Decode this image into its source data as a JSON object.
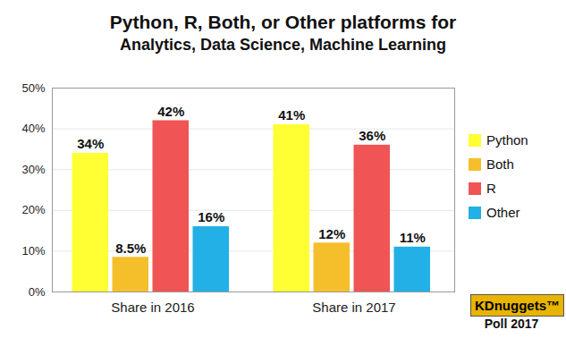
{
  "chart_data": {
    "type": "bar",
    "title": "Python, R, Both, or Other platforms for",
    "subtitle": "Analytics, Data Science, Machine Learning",
    "categories": [
      "Share in 2016",
      "Share in 2017"
    ],
    "series": [
      {
        "name": "Python",
        "color": "#ffff33",
        "values": [
          34,
          41
        ],
        "value_labels": [
          "34%",
          "41%"
        ]
      },
      {
        "name": "Both",
        "color": "#f5bf2c",
        "values": [
          8.5,
          12
        ],
        "value_labels": [
          "8.5%",
          "12%"
        ]
      },
      {
        "name": "R",
        "color": "#f05454",
        "values": [
          42,
          36
        ],
        "value_labels": [
          "42%",
          "36%"
        ]
      },
      {
        "name": "Other",
        "color": "#22b0e6",
        "values": [
          16,
          11
        ],
        "value_labels": [
          "16%",
          "11%"
        ]
      }
    ],
    "ylim": [
      0,
      50
    ],
    "yticks": [
      {
        "value": 0,
        "label": "0%"
      },
      {
        "value": 10,
        "label": "10%"
      },
      {
        "value": 20,
        "label": "20%"
      },
      {
        "value": 30,
        "label": "30%"
      },
      {
        "value": 40,
        "label": "40%"
      },
      {
        "value": 50,
        "label": "50%"
      }
    ],
    "grid": true,
    "legend": "right",
    "data_labels": true,
    "annotations": [
      "KDnuggets™",
      "Poll 2017"
    ]
  }
}
